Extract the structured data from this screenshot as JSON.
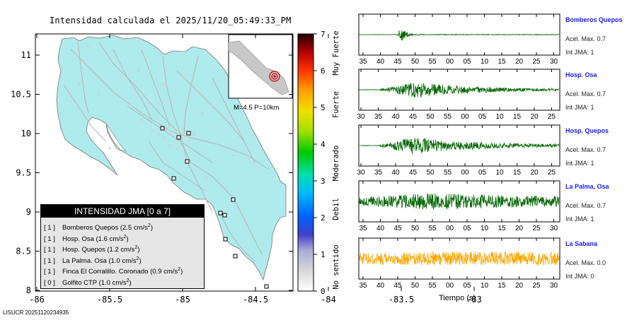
{
  "header": {
    "title": "Intensidad calculada el 2025/11/20_05:49:33_PM"
  },
  "map": {
    "y_ticks": [
      "11",
      "10.5",
      "10",
      "9.5",
      "9",
      "8.5",
      "8"
    ],
    "x_ticks": [
      "-86",
      "-85.5",
      "-85",
      "-84.5",
      "-84",
      "-83.5",
      "-83"
    ],
    "inset_label": "M=4.5 P=10km",
    "land_color": "#afeaec",
    "credit": "LISUCR 20251120234935"
  },
  "colorbar": {
    "ticks": [
      "7",
      "6",
      "5",
      "4",
      "3",
      "2",
      "1",
      "0"
    ],
    "labels": [
      "Muy Fuerte",
      "Fuerte",
      "Moderado",
      "Debil",
      "No sentido"
    ]
  },
  "legend": {
    "title": "INTENSIDAD JMA [0 a 7]",
    "items": [
      {
        "level": "[ 1 ]",
        "text": "Bomberos Quepos (2.5 cm/s",
        "sup": "2",
        "tail": ")"
      },
      {
        "level": "[ 1 ]",
        "text": "Hosp. Osa (1.6 cm/s",
        "sup": "2",
        "tail": ")"
      },
      {
        "level": "[ 1 ]",
        "text": "Hosp. Quepos (1.2 cm/s",
        "sup": "2",
        "tail": ")"
      },
      {
        "level": "[ 1 ]",
        "text": "La Palma. Osa (1.0 cm/s",
        "sup": "2",
        "tail": ")"
      },
      {
        "level": "[ 1 ]",
        "text": "Finca El Corralillo. Coronado (0.9 cm/s",
        "sup": "2",
        "tail": ")"
      },
      {
        "level": "[ 0 ]",
        "text": "Golfito CTP (1.0 cm/s",
        "sup": "2",
        "tail": ")"
      }
    ]
  },
  "stations": [
    {
      "name": "Bomberos Quepos",
      "acel": "Acel. Max. 0.7",
      "jma": "Int JMA: 1",
      "color": "#006400",
      "ticks": [
        "35",
        "40",
        "45",
        "50",
        "55",
        "00",
        "05",
        "10",
        "15",
        "20",
        "25",
        "30"
      ]
    },
    {
      "name": "Hosp. Osa",
      "acel": "Acel. Max. 0.7",
      "jma": "Int JMA: 1",
      "color": "#006400",
      "ticks": [
        "30",
        "35",
        "40",
        "45",
        "50",
        "55",
        "00",
        "05",
        "10",
        "15",
        "20",
        "25"
      ]
    },
    {
      "name": "Hosp. Quepos",
      "acel": "Acel. Max. 0.7",
      "jma": "Int JMA: 1",
      "color": "#006400",
      "ticks": [
        "30",
        "35",
        "40",
        "45",
        "50",
        "55",
        "00",
        "05",
        "10",
        "15",
        "20",
        "25"
      ]
    },
    {
      "name": "La Palma, Osa",
      "acel": "Acel. Max. 0.7",
      "jma": "Int JMA: 1",
      "color": "#006400",
      "ticks": [
        "35",
        "40",
        "45",
        "50",
        "55",
        "00",
        "05",
        "10",
        "15",
        "20",
        "25",
        "30"
      ]
    },
    {
      "name": "La Sabana",
      "acel": "Acel. Max. 0.0",
      "jma": "Int JMA: 0",
      "color": "#ffa500",
      "ticks": [
        "35",
        "40",
        "45",
        "50",
        "55",
        "00",
        "05",
        "10",
        "15",
        "20",
        "25",
        "30"
      ]
    }
  ],
  "wave_axis_title": "Tiempo (s)"
}
